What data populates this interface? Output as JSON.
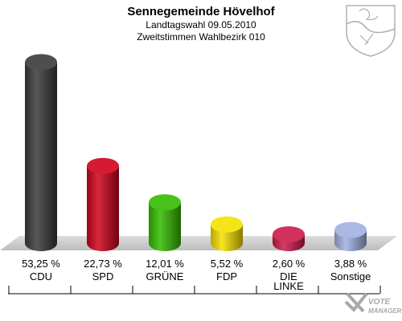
{
  "chart_data": {
    "type": "bar",
    "title": "Sennegemeinde Hövelhof",
    "subtitle_1": "Landtagswahl 09.05.2010",
    "subtitle_2": "Zweitstimmen Wahlbezirk 010",
    "categories": [
      "CDU",
      "SPD",
      "GRÜNE",
      "FDP",
      "DIE LINKE",
      "Sonstige"
    ],
    "values": [
      53.25,
      22.73,
      12.01,
      5.52,
      2.6,
      3.88
    ],
    "value_labels": [
      "53,25 %",
      "22,73 %",
      "12,01 %",
      "5,52 %",
      "2,60 %",
      "3,88 %"
    ],
    "colors": [
      "#3a3a3a",
      "#d0021b",
      "#33bb00",
      "#f5e000",
      "#cc1a4a",
      "#a0b0e0"
    ],
    "ylim": [
      0,
      55
    ],
    "grid": false,
    "legend": "none"
  },
  "watermark": {
    "line1": "VOTE",
    "line2": "MANAGER",
    "icon": "vote-manager-logo"
  },
  "emblem": {
    "icon": "coat-of-arms-nrw"
  }
}
